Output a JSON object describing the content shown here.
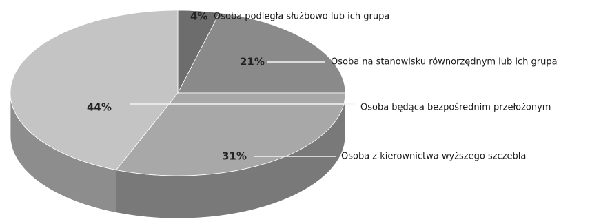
{
  "chart_data": {
    "type": "pie",
    "style": "3d",
    "slices": [
      {
        "label": "Osoba podległa służbowo lub ich grupa",
        "value": 4,
        "value_label": "4%",
        "color": "#6d6d6d"
      },
      {
        "label": "Osoba na stanowisku równorzędnym lub ich grupa",
        "value": 21,
        "value_label": "21%",
        "color": "#8a8a8a"
      },
      {
        "label": "Osoba będąca bezpośrednim przełożonym",
        "value": 0,
        "value_label": "",
        "color": "#9a9a9a"
      },
      {
        "label": "Osoba z kierownictwa wyższego szczebla",
        "value": 31,
        "value_label": "31%",
        "color": "#a8a8a8"
      },
      {
        "label": "",
        "value": 44,
        "value_label": "44%",
        "color": "#c4c4c4"
      }
    ],
    "title": "",
    "legend": "none"
  }
}
